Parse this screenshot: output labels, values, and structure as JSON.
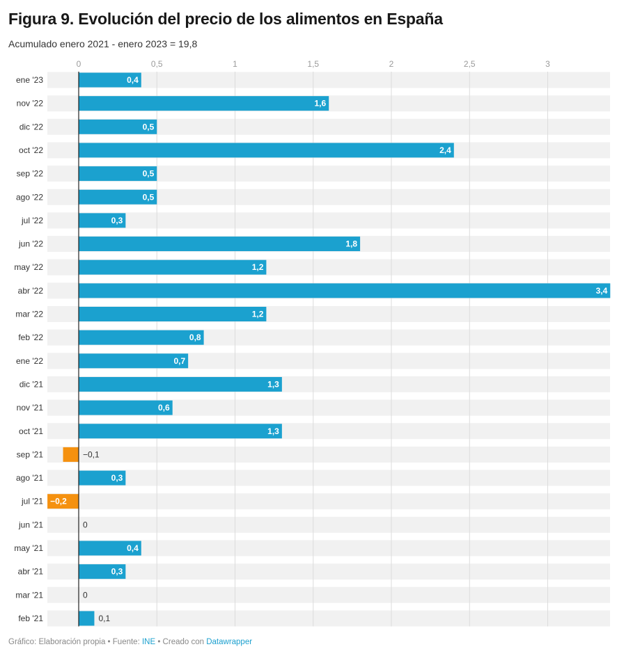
{
  "title": "Figura 9. Evolución del precio de los alimentos en España",
  "subtitle": "Acumulado enero 2021 - enero 2023 = 19,8",
  "footer": {
    "prefix": "Gráfico: Elaboración propia • Fuente: ",
    "source_link": "INE",
    "middle": " • Creado con ",
    "tool_link": "Datawrapper"
  },
  "colors": {
    "positive": "#1ba1cf",
    "negative": "#f5910f",
    "row_background": "#f1f1f1",
    "gridline": "#dcdcdc",
    "zero_line": "#222222"
  },
  "chart_data": {
    "type": "bar",
    "orientation": "horizontal",
    "categories": [
      "ene '23",
      "nov '22",
      "dic '22",
      "oct '22",
      "sep '22",
      "ago '22",
      "jul '22",
      "jun '22",
      "may '22",
      "abr '22",
      "mar '22",
      "feb '22",
      "ene '22",
      "dic '21",
      "nov '21",
      "oct '21",
      "sep '21",
      "ago '21",
      "jul '21",
      "jun '21",
      "may '21",
      "abr '21",
      "mar '21",
      "feb '21"
    ],
    "values": [
      0.4,
      1.6,
      0.5,
      2.4,
      0.5,
      0.5,
      0.3,
      1.8,
      1.2,
      3.4,
      1.2,
      0.8,
      0.7,
      1.3,
      0.6,
      1.3,
      -0.1,
      0.3,
      -0.2,
      0,
      0.4,
      0.3,
      0,
      0.1
    ],
    "value_labels": [
      "0,4",
      "1,6",
      "0,5",
      "2,4",
      "0,5",
      "0,5",
      "0,3",
      "1,8",
      "1,2",
      "3,4",
      "1,2",
      "0,8",
      "0,7",
      "1,3",
      "0,6",
      "1,3",
      "−0,1",
      "0,3",
      "−0,2",
      "0",
      "0,4",
      "0,3",
      "0",
      "0,1"
    ],
    "xticks": [
      0,
      0.5,
      1,
      1.5,
      2,
      2.5,
      3
    ],
    "xtick_labels": [
      "0",
      "0,5",
      "1",
      "1,5",
      "2",
      "2,5",
      "3"
    ],
    "xlim": [
      -0.2,
      3.4
    ],
    "grid": true,
    "legend": "none"
  }
}
